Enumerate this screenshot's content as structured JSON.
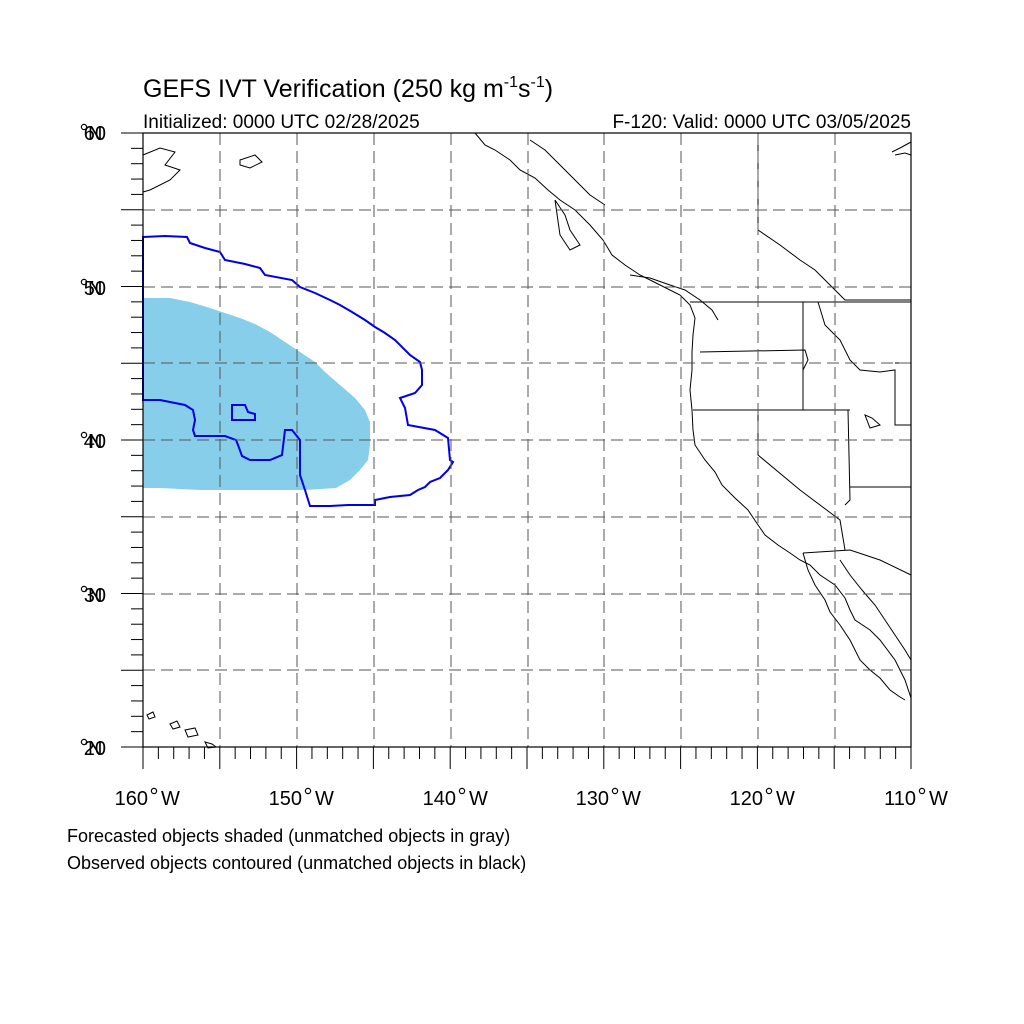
{
  "title": {
    "main": "GEFS IVT Verification (250 kg m",
    "sup1": "-1",
    "mid": "s",
    "sup2": "-1",
    "end": ")"
  },
  "subtitle_left": "Initialized: 0000 UTC 02/28/2025",
  "subtitle_right": "F-120: Valid: 0000 UTC 03/05/2025",
  "lat_labels": [
    {
      "deg": "60",
      "hemi": "N",
      "value": 60
    },
    {
      "deg": "50",
      "hemi": "N",
      "value": 50
    },
    {
      "deg": "40",
      "hemi": "N",
      "value": 40
    },
    {
      "deg": "30",
      "hemi": "N",
      "value": 30
    },
    {
      "deg": "20",
      "hemi": "N",
      "value": 20
    }
  ],
  "lon_labels": [
    {
      "deg": "160",
      "hemi": "W",
      "value": -160
    },
    {
      "deg": "150",
      "hemi": "W",
      "value": -150
    },
    {
      "deg": "140",
      "hemi": "W",
      "value": -140
    },
    {
      "deg": "130",
      "hemi": "W",
      "value": -130
    },
    {
      "deg": "120",
      "hemi": "W",
      "value": -120
    },
    {
      "deg": "110",
      "hemi": "W",
      "value": -110
    }
  ],
  "map_extent": {
    "lon_min": -160,
    "lon_max": -110,
    "lat_min": 20,
    "lat_max": 60
  },
  "gridline_spacing_deg": 5,
  "legend_line1": "Forecasted objects shaded (unmatched objects in gray)",
  "legend_line2": "Observed objects contoured (unmatched objects in black)",
  "colors": {
    "forecast_fill": "#87ceeb",
    "observed_contour": "#0000e6",
    "coastline": "#000000",
    "grid": "#555555"
  }
}
